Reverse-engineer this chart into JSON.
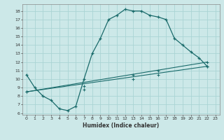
{
  "xlabel": "Humidex (Indice chaleur)",
  "bg_color": "#cce8e8",
  "grid_color": "#aad4d4",
  "line_color": "#1a6b6b",
  "xlim": [
    -0.5,
    23.5
  ],
  "ylim": [
    5.8,
    18.8
  ],
  "xticks": [
    0,
    1,
    2,
    3,
    4,
    5,
    6,
    7,
    8,
    9,
    10,
    11,
    12,
    13,
    14,
    15,
    16,
    17,
    18,
    19,
    20,
    21,
    22,
    23
  ],
  "yticks": [
    6,
    7,
    8,
    9,
    10,
    11,
    12,
    13,
    14,
    15,
    16,
    17,
    18
  ],
  "line1_x": [
    0,
    1,
    2,
    3,
    4,
    5,
    6,
    7,
    8,
    9,
    10,
    11,
    12,
    13,
    14,
    15,
    16,
    17,
    18,
    19,
    20,
    21,
    22
  ],
  "line1_y": [
    10.5,
    9.0,
    8.0,
    7.5,
    6.5,
    6.3,
    6.8,
    10.0,
    13.0,
    14.8,
    17.0,
    17.5,
    18.2,
    18.0,
    18.0,
    17.5,
    17.3,
    17.0,
    14.8,
    14.0,
    13.2,
    12.5,
    11.5
  ],
  "line2_x": [
    0,
    22
  ],
  "line2_y": [
    8.5,
    12.0
  ],
  "line3_x": [
    0,
    22
  ],
  "line3_y": [
    8.5,
    11.5
  ],
  "marker_x2": [
    0,
    7,
    13,
    16,
    22
  ],
  "marker_y2": [
    8.5,
    9.2,
    10.5,
    11.0,
    12.0
  ],
  "marker_x3": [
    0,
    7,
    13,
    16,
    22
  ],
  "marker_y3": [
    8.5,
    8.8,
    10.0,
    10.5,
    11.5
  ]
}
